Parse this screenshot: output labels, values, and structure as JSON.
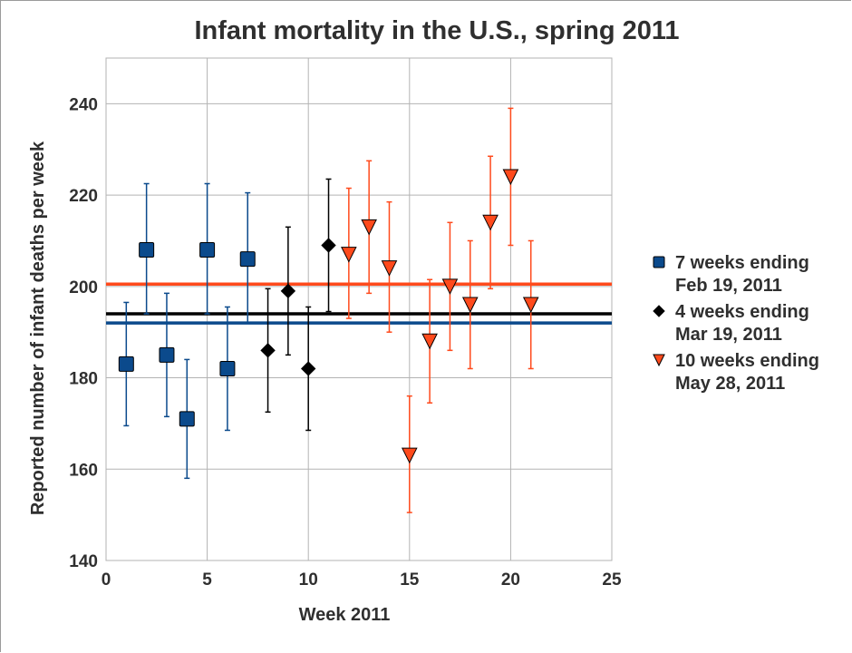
{
  "chart_data": {
    "type": "scatter",
    "title": "Infant mortality in the U.S., spring 2011",
    "xlabel": "Week 2011",
    "ylabel": "Reported number of infant deaths per week",
    "xlim": [
      0,
      25
    ],
    "ylim": [
      140,
      250
    ],
    "xticks": [
      0,
      5,
      10,
      15,
      20,
      25
    ],
    "yticks": [
      140,
      160,
      180,
      200,
      220,
      240
    ],
    "grid": true,
    "legend_position": "right",
    "series": [
      {
        "name": "7 weeks ending Feb 19, 2011",
        "legend_lines": [
          "7 weeks ending",
          "Feb 19, 2011"
        ],
        "marker": "square",
        "color": "#0b4a8c",
        "mean": 192,
        "points": [
          {
            "x": 1,
            "y": 183,
            "low": 169.5,
            "high": 196.5
          },
          {
            "x": 2,
            "y": 208,
            "low": 194,
            "high": 222.5
          },
          {
            "x": 3,
            "y": 185,
            "low": 171.5,
            "high": 198.5
          },
          {
            "x": 4,
            "y": 171,
            "low": 158,
            "high": 184
          },
          {
            "x": 5,
            "y": 208,
            "low": 194,
            "high": 222.5
          },
          {
            "x": 6,
            "y": 182,
            "low": 168.5,
            "high": 195.5
          },
          {
            "x": 7,
            "y": 206,
            "low": 192,
            "high": 220.5
          }
        ]
      },
      {
        "name": "4 weeks ending Mar 19, 2011",
        "legend_lines": [
          "4 weeks ending",
          "Mar 19, 2011"
        ],
        "marker": "diamond",
        "color": "#000000",
        "mean": 194,
        "points": [
          {
            "x": 8,
            "y": 186,
            "low": 172.5,
            "high": 199.5
          },
          {
            "x": 9,
            "y": 199,
            "low": 185,
            "high": 213
          },
          {
            "x": 10,
            "y": 182,
            "low": 168.5,
            "high": 195.5
          },
          {
            "x": 11,
            "y": 209,
            "low": 194.5,
            "high": 223.5
          }
        ]
      },
      {
        "name": "10 weeks ending May 28, 2011",
        "legend_lines": [
          "10 weeks ending",
          "May 28, 2011"
        ],
        "marker": "triangle-down",
        "color": "#ff4a1c",
        "mean": 200.5,
        "points": [
          {
            "x": 12,
            "y": 207,
            "low": 193,
            "high": 221.5
          },
          {
            "x": 13,
            "y": 213,
            "low": 198.5,
            "high": 227.5
          },
          {
            "x": 14,
            "y": 204,
            "low": 190,
            "high": 218.5
          },
          {
            "x": 15,
            "y": 163,
            "low": 150.5,
            "high": 176
          },
          {
            "x": 16,
            "y": 188,
            "low": 174.5,
            "high": 201.5
          },
          {
            "x": 17,
            "y": 200,
            "low": 186,
            "high": 214
          },
          {
            "x": 18,
            "y": 196,
            "low": 182,
            "high": 210
          },
          {
            "x": 19,
            "y": 214,
            "low": 199.5,
            "high": 228.5
          },
          {
            "x": 20,
            "y": 224,
            "low": 209,
            "high": 239
          },
          {
            "x": 21,
            "y": 196,
            "low": 182,
            "high": 210
          }
        ]
      }
    ]
  }
}
